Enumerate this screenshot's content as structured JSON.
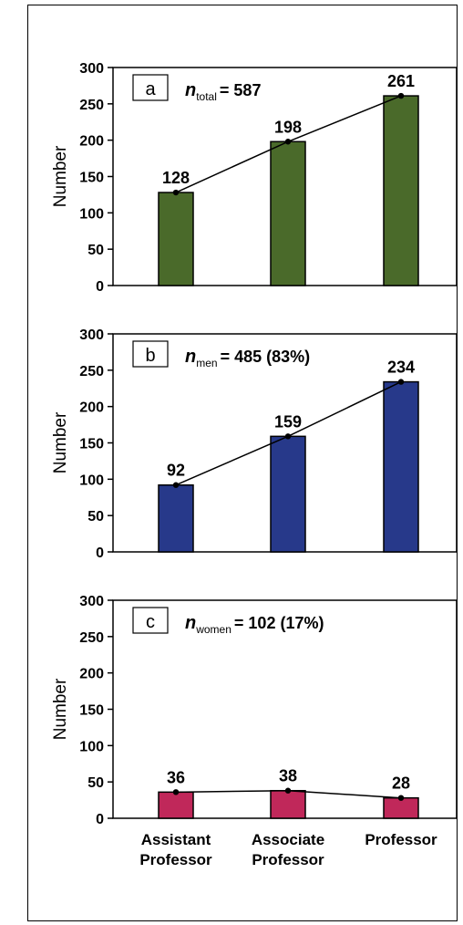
{
  "chart_data": [
    {
      "type": "bar",
      "panel_label": "a",
      "annotation": {
        "n_symbol": "n",
        "subscript": "total",
        "value_text": "= 587"
      },
      "categories": [
        "Assistant Professor",
        "Associate Professor",
        "Professor"
      ],
      "values": [
        128,
        198,
        261
      ],
      "data_labels": [
        "128",
        "198",
        "261"
      ],
      "bar_color": "#4a6a2a",
      "line_overlay": true,
      "ylabel": "Number",
      "ylim": [
        0,
        300
      ],
      "yticks": [
        "0",
        "50",
        "100",
        "150",
        "200",
        "250",
        "300"
      ],
      "grid": false
    },
    {
      "type": "bar",
      "panel_label": "b",
      "annotation": {
        "n_symbol": "n",
        "subscript": "men",
        "value_text": "= 485 (83%)"
      },
      "categories": [
        "Assistant Professor",
        "Associate Professor",
        "Professor"
      ],
      "values": [
        92,
        159,
        234
      ],
      "data_labels": [
        "92",
        "159",
        "234"
      ],
      "bar_color": "#27398a",
      "line_overlay": true,
      "ylabel": "Number",
      "ylim": [
        0,
        300
      ],
      "yticks": [
        "0",
        "50",
        "100",
        "150",
        "200",
        "250",
        "300"
      ],
      "grid": false
    },
    {
      "type": "bar",
      "panel_label": "c",
      "annotation": {
        "n_symbol": "n",
        "subscript": "women",
        "value_text": "= 102 (17%)"
      },
      "categories": [
        "Assistant Professor",
        "Associate Professor",
        "Professor"
      ],
      "values": [
        36,
        38,
        28
      ],
      "data_labels": [
        "36",
        "38",
        "28"
      ],
      "bar_color": "#c0285a",
      "line_overlay": true,
      "ylabel": "Number",
      "ylim": [
        0,
        300
      ],
      "yticks": [
        "0",
        "50",
        "100",
        "150",
        "200",
        "250",
        "300"
      ],
      "grid": false,
      "xtick_labels": [
        [
          "Assistant",
          "Professor"
        ],
        [
          "Associate",
          "Professor"
        ],
        [
          "Professor"
        ]
      ]
    }
  ]
}
